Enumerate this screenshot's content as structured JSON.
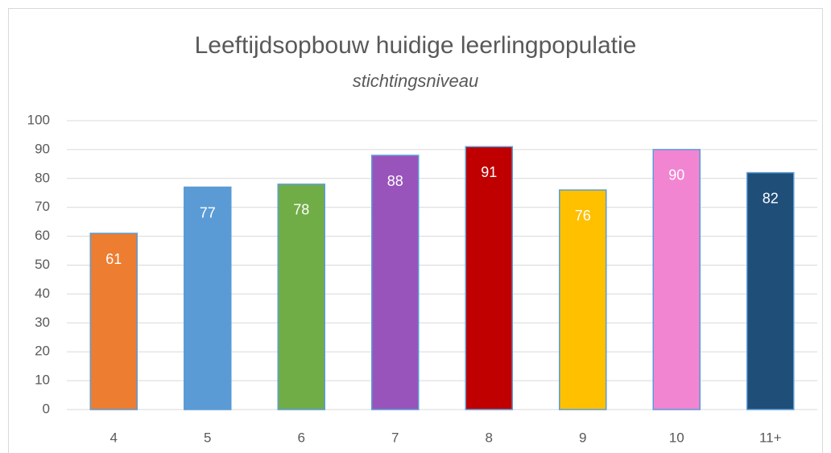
{
  "chart_data": {
    "type": "bar",
    "title": "Leeftijdsopbouw huidige leerlingpopulatie",
    "subtitle": "stichtingsniveau",
    "categories": [
      "4",
      "5",
      "6",
      "7",
      "8",
      "9",
      "10",
      "11+"
    ],
    "values": [
      61,
      77,
      78,
      88,
      91,
      76,
      90,
      82
    ],
    "colors": [
      "#ed7d31",
      "#5b9bd5",
      "#70ad47",
      "#9954bb",
      "#c00000",
      "#ffc000",
      "#f285d1",
      "#1f4e79"
    ],
    "ylim": [
      0,
      100
    ],
    "yticks": [
      0,
      10,
      20,
      30,
      40,
      50,
      60,
      70,
      80,
      90,
      100
    ],
    "grid": true
  }
}
